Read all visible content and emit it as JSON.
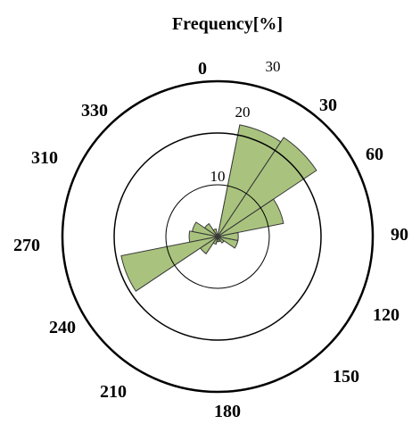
{
  "chart_data": {
    "type": "polar-bar",
    "title": "Frequency[%]",
    "radial_ticks": [
      "10",
      "20",
      "30"
    ],
    "radial_max": 30,
    "direction_labels": [
      "0",
      "30",
      "60",
      "90",
      "120",
      "150",
      "180",
      "210",
      "240",
      "270",
      "310",
      "330"
    ],
    "bar_color": "#a9c37e",
    "sectors": [
      {
        "direction": 15,
        "value": 0.5
      },
      {
        "direction": 22.5,
        "value": 22
      },
      {
        "direction": 45,
        "value": 23
      },
      {
        "direction": 67.5,
        "value": 13
      },
      {
        "direction": 90,
        "value": 4
      },
      {
        "direction": 112.5,
        "value": 4
      },
      {
        "direction": 135,
        "value": 1.5
      },
      {
        "direction": 157.5,
        "value": 1
      },
      {
        "direction": 180,
        "value": 1
      },
      {
        "direction": 202.5,
        "value": 1.5
      },
      {
        "direction": 225,
        "value": 4
      },
      {
        "direction": 247.5,
        "value": 19
      },
      {
        "direction": 270,
        "value": 5.5
      },
      {
        "direction": 292.5,
        "value": 5
      },
      {
        "direction": 315,
        "value": 3
      },
      {
        "direction": 337.5,
        "value": 1.5
      }
    ]
  }
}
